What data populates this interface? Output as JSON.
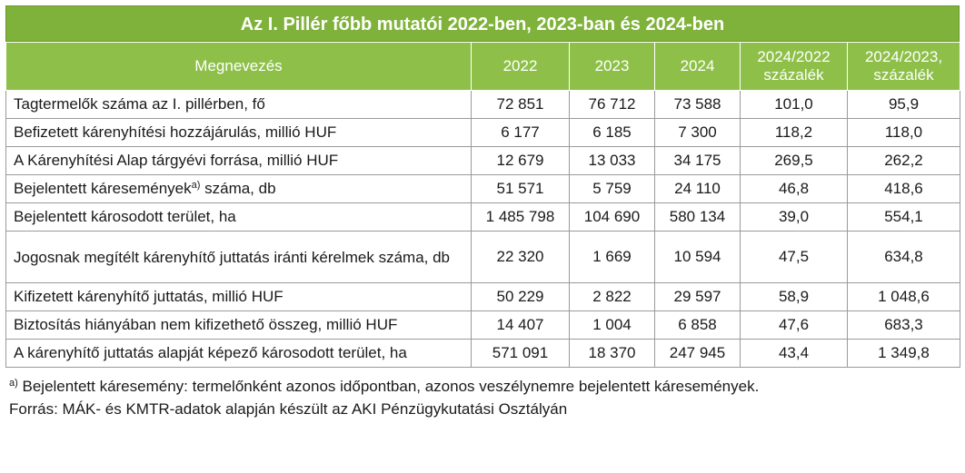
{
  "title": "Az I. Pillér főbb mutatói 2022-ben, 2023-ban és 2024-ben",
  "headers": {
    "name": "Megnevezés",
    "y2022": "2022",
    "y2023": "2023",
    "y2024": "2024",
    "r2422_line1": "2024/2022",
    "r2422_line2": "százalék",
    "r2423_line1": "2024/2023,",
    "r2423_line2": "százalék"
  },
  "rows": [
    {
      "name": "Tagtermelők száma az I. pillérben, fő",
      "name_sup": "",
      "name_after": "",
      "v2022": "72 851",
      "v2023": "76 712",
      "v2024": "73 588",
      "r1": "101,0",
      "r2": "95,9"
    },
    {
      "name": "Befizetett kárenyhítési hozzájárulás, millió HUF",
      "name_sup": "",
      "name_after": "",
      "v2022": "6 177",
      "v2023": "6 185",
      "v2024": "7 300",
      "r1": "118,2",
      "r2": "118,0"
    },
    {
      "name": "A Kárenyhítési Alap tárgyévi forrása, millió HUF",
      "name_sup": "",
      "name_after": "",
      "v2022": "12 679",
      "v2023": "13 033",
      "v2024": "34 175",
      "r1": "269,5",
      "r2": "262,2"
    },
    {
      "name": "Bejelentett káresemények",
      "name_sup": "a)",
      "name_after": " száma, db",
      "v2022": "51 571",
      "v2023": "5 759",
      "v2024": "24 110",
      "r1": "46,8",
      "r2": "418,6"
    },
    {
      "name": "Bejelentett károsodott terület, ha",
      "name_sup": "",
      "name_after": "",
      "v2022": "1 485 798",
      "v2023": "104 690",
      "v2024": "580 134",
      "r1": "39,0",
      "r2": "554,1"
    },
    {
      "name": "Jogosnak megítélt kárenyhítő juttatás iránti kérelmek száma, db",
      "name_sup": "",
      "name_after": "",
      "v2022": "22 320",
      "v2023": "1 669",
      "v2024": "10 594",
      "r1": "47,5",
      "r2": "634,8"
    },
    {
      "name": "Kifizetett kárenyhítő juttatás, millió HUF",
      "name_sup": "",
      "name_after": "",
      "v2022": "50 229",
      "v2023": "2 822",
      "v2024": "29 597",
      "r1": "58,9",
      "r2": "1 048,6"
    },
    {
      "name": "Biztosítás hiányában nem kifizethető összeg, millió HUF",
      "name_sup": "",
      "name_after": "",
      "v2022": "14 407",
      "v2023": "1 004",
      "v2024": "6 858",
      "r1": "47,6",
      "r2": "683,3"
    },
    {
      "name": "A kárenyhítő juttatás alapját képező károsodott terület, ha",
      "name_sup": "",
      "name_after": "",
      "v2022": "571 091",
      "v2023": "18 370",
      "v2024": "247 945",
      "r1": "43,4",
      "r2": "1 349,8"
    }
  ],
  "footnote": {
    "marker": "a)",
    "text": " Bejelentett káresemény: termelőnként azonos időpontban, azonos veszélynemre bejelentett káresemények.",
    "source": "Forrás: MÁK- és KMTR-adatok alapján készült az AKI Pénzügykutatási Osztályán"
  },
  "colors": {
    "title_bg": "#7fb23a",
    "header_bg": "#8ec049",
    "border": "#9a9a9a"
  }
}
